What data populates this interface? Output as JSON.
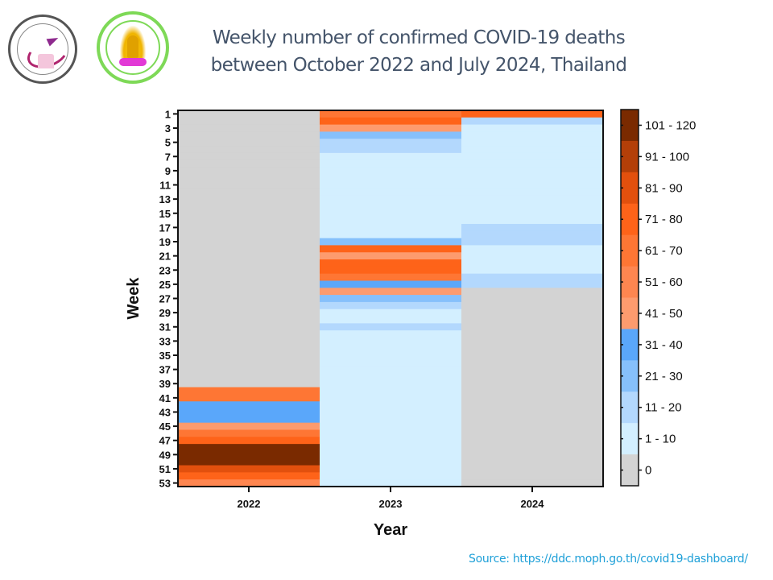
{
  "header": {
    "logos": [
      {
        "name": "Center of Excellence in Clinical Virology logo",
        "icon": "clinical-virology-logo"
      },
      {
        "name": "Faculty of Medicine Chulalongkorn University logo",
        "icon": "chulalongkorn-medicine-logo"
      }
    ]
  },
  "footer": {
    "source": "Source: https://ddc.moph.go.th/covid19-dashboard/"
  },
  "chart_data": {
    "type": "heatmap",
    "title": [
      "Weekly number of confirmed COVID-19 deaths",
      "between October 2022 and July 2024, Thailand"
    ],
    "xlabel": "Year",
    "ylabel": "Week",
    "x": [
      "2022",
      "2023",
      "2024"
    ],
    "y_ticks": [
      "1",
      "3",
      "5",
      "7",
      "9",
      "11",
      "13",
      "15",
      "17",
      "19",
      "21",
      "23",
      "25",
      "27",
      "29",
      "31",
      "33",
      "35",
      "37",
      "39",
      "41",
      "43",
      "45",
      "47",
      "49",
      "51",
      "53"
    ],
    "weeks": 53,
    "bins": [
      {
        "label": "0",
        "color": "#d3d3d3"
      },
      {
        "label": "1 - 10",
        "color": "#d3efff"
      },
      {
        "label": "11 - 20",
        "color": "#b3d8fd"
      },
      {
        "label": "21 - 30",
        "color": "#86c0fb"
      },
      {
        "label": "31 - 40",
        "color": "#5aa7fa"
      },
      {
        "label": "41 - 50",
        "color": "#fd9b6e"
      },
      {
        "label": "51 - 60",
        "color": "#fe8650"
      },
      {
        "label": "61 - 70",
        "color": "#fe7634"
      },
      {
        "label": "71 - 80",
        "color": "#fe6319"
      },
      {
        "label": "81 - 90",
        "color": "#e2500d"
      },
      {
        "label": "91 - 100",
        "color": "#b33f08"
      },
      {
        "label": "101 - 120",
        "color": "#7a2a00"
      }
    ],
    "legend_position": "right",
    "series": [
      {
        "name": "2022",
        "bin_index_by_week": [
          0,
          0,
          0,
          0,
          0,
          0,
          0,
          0,
          0,
          0,
          0,
          0,
          0,
          0,
          0,
          0,
          0,
          0,
          0,
          0,
          0,
          0,
          0,
          0,
          0,
          0,
          0,
          0,
          0,
          0,
          0,
          0,
          0,
          0,
          0,
          0,
          0,
          0,
          0,
          7,
          7,
          4,
          4,
          4,
          5,
          7,
          8,
          11,
          11,
          11,
          9,
          8,
          6
        ]
      },
      {
        "name": "2023",
        "bin_index_by_week": [
          7,
          8,
          5,
          3,
          2,
          2,
          1,
          1,
          1,
          1,
          1,
          1,
          1,
          1,
          1,
          1,
          1,
          1,
          3,
          8,
          5,
          8,
          8,
          7,
          4,
          5,
          3,
          2,
          1,
          1,
          2,
          1,
          1,
          1,
          1,
          1,
          1,
          1,
          1,
          1,
          1,
          1,
          1,
          1,
          1,
          1,
          1,
          1,
          1,
          1,
          1,
          1,
          1
        ]
      },
      {
        "name": "2024",
        "bin_index_by_week": [
          8,
          2,
          1,
          1,
          1,
          1,
          1,
          1,
          1,
          1,
          1,
          1,
          1,
          1,
          1,
          1,
          2,
          2,
          2,
          1,
          1,
          1,
          1,
          2,
          2,
          0,
          0,
          0,
          0,
          0,
          0,
          0,
          0,
          0,
          0,
          0,
          0,
          0,
          0,
          0,
          0,
          0,
          0,
          0,
          0,
          0,
          0,
          0,
          0,
          0,
          0,
          0,
          0
        ]
      }
    ]
  }
}
